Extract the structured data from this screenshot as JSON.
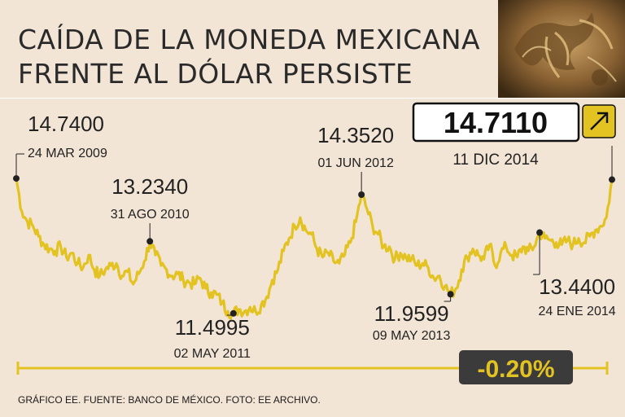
{
  "title_line1": "CAÍDA DE LA MONEDA MEXICANA",
  "title_line2": "FRENTE AL DÓLAR PERSISTE",
  "footer": "GRÁFICO EE. FUENTE: BANCO DE MÉXICO. FOTO: EE ARCHIVO.",
  "colors": {
    "line": "#e3c321",
    "text": "#222222",
    "background": "#f3e5d6",
    "badge": "#111111"
  },
  "icons": {
    "trend": "arrow-up-right-icon",
    "photo": "coin-photo"
  },
  "chart_data": {
    "type": "line",
    "x_start": "2009-03-24",
    "x_end": "2014-12-11",
    "ylim": [
      11.3,
      14.8
    ],
    "grid": false,
    "series": [
      {
        "values": [
          14.74,
          13.95,
          13.7,
          13.6,
          13.35,
          13.15,
          13.05,
          13.0,
          13.1,
          12.85,
          12.95,
          12.7,
          12.6,
          12.9,
          12.55,
          12.4,
          12.55,
          12.65,
          12.7,
          12.4,
          12.5,
          12.2,
          12.45,
          12.75,
          13.23,
          12.9,
          12.65,
          12.55,
          12.4,
          12.45,
          12.3,
          12.25,
          12.2,
          12.35,
          12.1,
          12.0,
          11.95,
          11.75,
          11.55,
          11.5,
          11.6,
          11.55,
          11.65,
          11.55,
          11.7,
          11.9,
          12.3,
          12.55,
          13.0,
          13.3,
          13.6,
          13.8,
          13.5,
          13.4,
          13.05,
          12.85,
          12.95,
          12.75,
          12.7,
          12.9,
          13.2,
          13.7,
          14.35,
          14.0,
          13.6,
          13.4,
          13.1,
          13.1,
          12.8,
          12.95,
          12.85,
          12.8,
          12.65,
          12.7,
          12.6,
          12.35,
          12.4,
          12.15,
          11.96,
          12.1,
          12.55,
          12.85,
          13.05,
          12.9,
          12.8,
          13.15,
          12.65,
          12.95,
          13.1,
          12.9,
          12.85,
          13.1,
          13.0,
          13.1,
          13.44,
          13.3,
          13.25,
          13.2,
          13.15,
          13.25,
          13.15,
          13.3,
          13.2,
          13.35,
          13.5,
          13.6,
          13.8,
          14.711
        ]
      }
    ],
    "annotations": [
      {
        "value": "14.7400",
        "date": "24 MAR 2009"
      },
      {
        "value": "13.2340",
        "date": "31 AGO 2010"
      },
      {
        "value": "11.4995",
        "date": "02 MAY 2011"
      },
      {
        "value": "14.3520",
        "date": "01 JUN 2012"
      },
      {
        "value": "11.9599",
        "date": "09 MAY 2013"
      },
      {
        "value": "13.4400",
        "date": "24 ENE 2014"
      },
      {
        "value": "14.7110",
        "date": "11 DIC 2014"
      }
    ],
    "change_label": "-0.20%"
  }
}
